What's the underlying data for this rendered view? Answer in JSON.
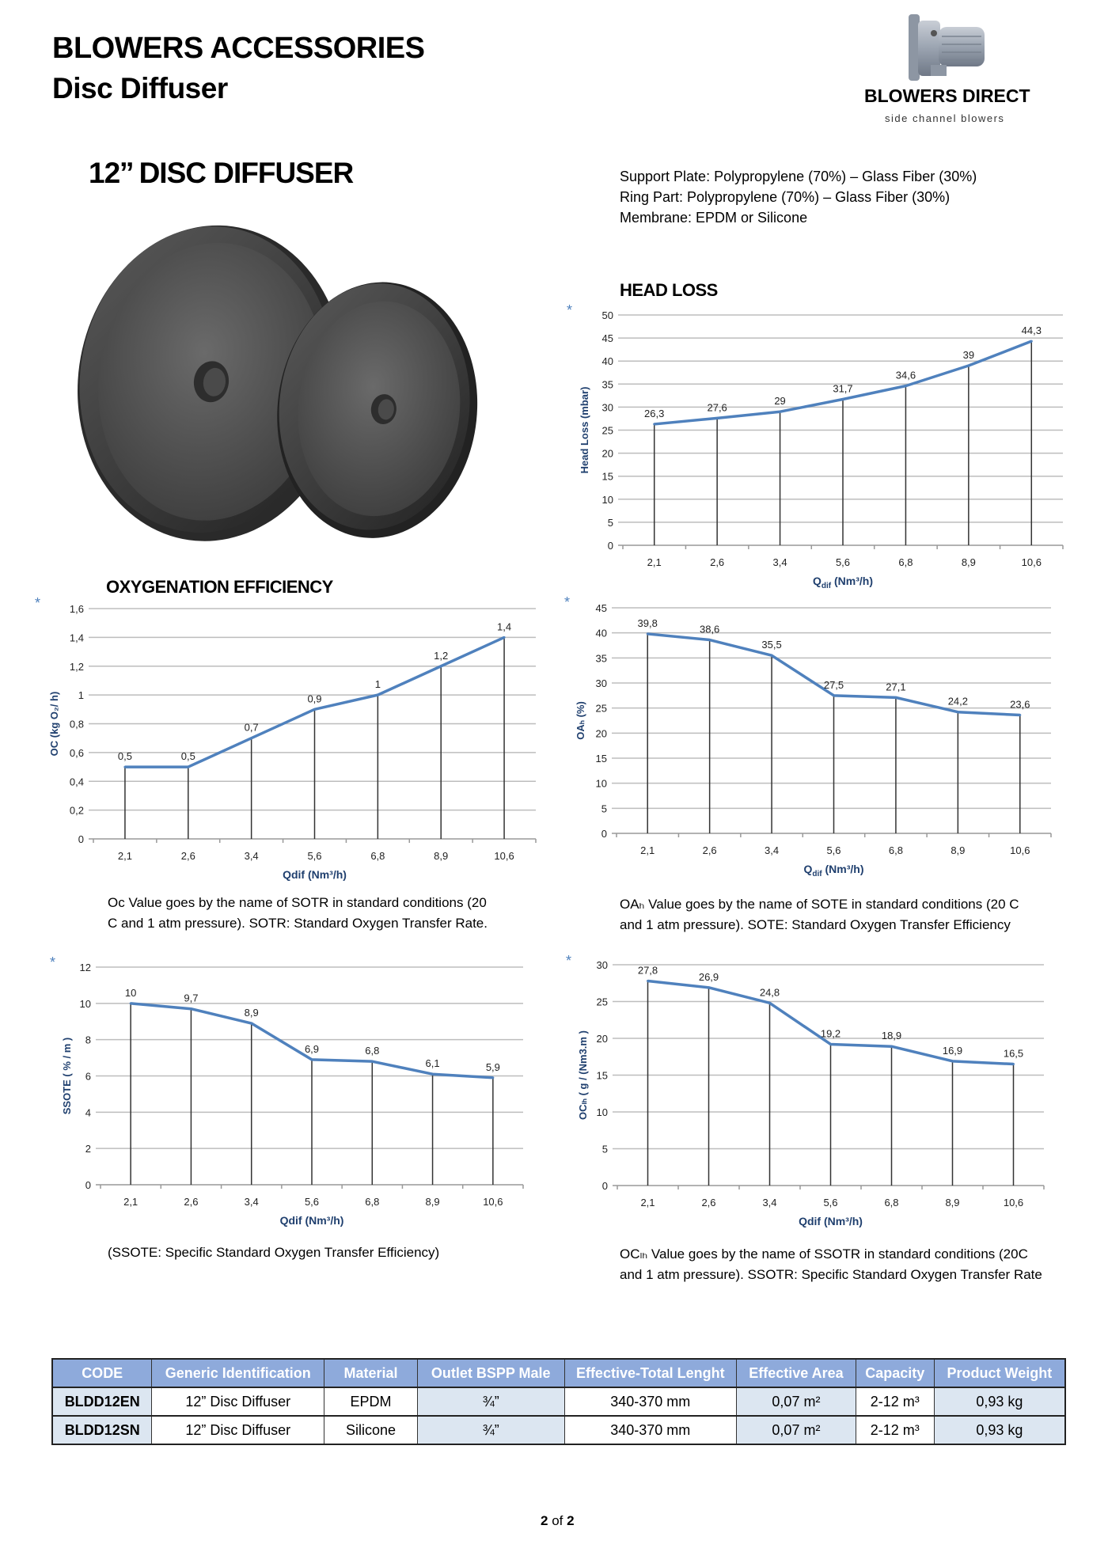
{
  "header": {
    "title": "BLOWERS ACCESSORIES",
    "subtitle": "Disc Diffuser"
  },
  "logo": {
    "brand": "BLOWERS DIRECT",
    "tagline": "side channel blowers"
  },
  "product": {
    "title": "12’’  DISC DIFFUSER",
    "specs": [
      "Support Plate: Polypropylene (70%) – Glass Fiber (30%)",
      "Ring Part: Polypropylene (70%) – Glass Fiber (30%)",
      "Membrane: EPDM or Silicone"
    ]
  },
  "sections": {
    "head_loss": "HEAD LOSS",
    "oxygenation": "OXYGENATION EFFICIENCY"
  },
  "captions": {
    "oc": [
      "Oc Value goes by the name of SOTR in standard conditions (20",
      "C and 1 atm pressure). SOTR: Standard Oxygen Transfer Rate."
    ],
    "oah": [
      "OAₕ Value goes by the name of SOTE in standard conditions (20 C",
      "and 1 atm pressure). SOTE: Standard Oxygen Transfer Efficiency"
    ],
    "ssote": [
      "(SSOTE: Specific Standard Oxygen Transfer Efficiency)"
    ],
    "oclh": [
      "OCₗₕ Value goes by the name of SSOTR in standard conditions (20C",
      "and 1 atm pressure). SSOTR: Specific Standard Oxygen Transfer Rate"
    ]
  },
  "marker": "*",
  "chart_data": [
    {
      "id": "head-loss",
      "type": "line",
      "categories": [
        "2,1",
        "2,6",
        "3,4",
        "5,6",
        "6,8",
        "8,9",
        "10,6"
      ],
      "values": [
        26.3,
        27.6,
        29,
        31.7,
        34.6,
        39,
        44.3
      ],
      "data_labels": [
        "26,3",
        "27,6",
        "29",
        "31,7",
        "34,6",
        "39",
        "44,3"
      ],
      "ylim": [
        0,
        50
      ],
      "y_ticks": [
        "0",
        "5",
        "10",
        "15",
        "20",
        "25",
        "30",
        "35",
        "40",
        "45",
        "50"
      ],
      "xlabel": [
        {
          "t": "Q"
        },
        {
          "t": "dif",
          "sub": true
        },
        {
          "t": " (Nm³/h)"
        }
      ],
      "ylabel": "Head Loss  (mbar)",
      "grid": true,
      "line_color": "#4f81bd"
    },
    {
      "id": "oc",
      "type": "line",
      "categories": [
        "2,1",
        "2,6",
        "3,4",
        "5,6",
        "6,8",
        "8,9",
        "10,6"
      ],
      "values": [
        0.5,
        0.5,
        0.7,
        0.9,
        1,
        1.2,
        1.4
      ],
      "data_labels": [
        "0,5",
        "0,5",
        "0,7",
        "0,9",
        "1",
        "1,2",
        "1,4"
      ],
      "ylim": [
        0,
        1.6
      ],
      "y_ticks": [
        "0",
        "0,2",
        "0,4",
        "0,6",
        "0,8",
        "1",
        "1,2",
        "1,4",
        "1,6"
      ],
      "xlabel": [
        {
          "t": "Qdif (Nm³/h)"
        }
      ],
      "ylabel": "OC (kg O₂/ h)",
      "grid": true,
      "line_color": "#4f81bd"
    },
    {
      "id": "oah",
      "type": "line",
      "categories": [
        "2,1",
        "2,6",
        "3,4",
        "5,6",
        "6,8",
        "8,9",
        "10,6"
      ],
      "values": [
        39.8,
        38.6,
        35.5,
        27.5,
        27.1,
        24.2,
        23.6
      ],
      "data_labels": [
        "39,8",
        "38,6",
        "35,5",
        "27,5",
        "27,1",
        "24,2",
        "23,6"
      ],
      "ylim": [
        0,
        45
      ],
      "y_ticks": [
        "0",
        "5",
        "10",
        "15",
        "20",
        "25",
        "30",
        "35",
        "40",
        "45"
      ],
      "xlabel": [
        {
          "t": "Q"
        },
        {
          "t": "dif",
          "sub": true
        },
        {
          "t": " (Nm³/h)"
        }
      ],
      "ylabel": "OAₕ  (%)",
      "grid": true,
      "line_color": "#4f81bd"
    },
    {
      "id": "ssote",
      "type": "line",
      "categories": [
        "2,1",
        "2,6",
        "3,4",
        "5,6",
        "6,8",
        "8,9",
        "10,6"
      ],
      "values": [
        10,
        9.7,
        8.9,
        6.9,
        6.8,
        6.1,
        5.9
      ],
      "data_labels": [
        "10",
        "9,7",
        "8,9",
        "6,9",
        "6,8",
        "6,1",
        "5,9"
      ],
      "ylim": [
        0,
        12
      ],
      "y_ticks": [
        "0",
        "2",
        "4",
        "6",
        "8",
        "10",
        "12"
      ],
      "xlabel": [
        {
          "t": "Qdif (Nm³/h)"
        }
      ],
      "ylabel": "SSOTE ( % / m )",
      "grid": true,
      "line_color": "#4f81bd"
    },
    {
      "id": "oclh",
      "type": "line",
      "categories": [
        "2,1",
        "2,6",
        "3,4",
        "5,6",
        "6,8",
        "8,9",
        "10,6"
      ],
      "values": [
        27.8,
        26.9,
        24.8,
        19.2,
        18.9,
        16.9,
        16.5
      ],
      "data_labels": [
        "27,8",
        "26,9",
        "24,8",
        "19,2",
        "18,9",
        "16,9",
        "16,5"
      ],
      "ylim": [
        0,
        30
      ],
      "y_ticks": [
        "0",
        "5",
        "10",
        "15",
        "20",
        "25",
        "30"
      ],
      "xlabel": [
        {
          "t": "Qdif (Nm³/h)"
        }
      ],
      "ylabel": "OCₗₕ ( g / (Nm3.m )",
      "grid": true,
      "line_color": "#4f81bd"
    }
  ],
  "table": {
    "header_color": "#8eaadb",
    "highlight_color": "#dce6f1",
    "columns": [
      "CODE",
      "Generic Identification",
      "Material",
      "Outlet BSPP Male",
      "Effective-Total Lenght",
      "Effective Area",
      "Capacity",
      "Product Weight"
    ],
    "rows": [
      [
        "BLDD12EN",
        "12” Disc Diffuser",
        "EPDM",
        "¾”",
        "340-370 mm",
        "0,07 m²",
        "2-12 m³",
        "0,93 kg"
      ],
      [
        "BLDD12SN",
        "12” Disc Diffuser",
        "Silicone",
        "¾”",
        "340-370 mm",
        "0,07 m²",
        "2-12 m³",
        "0,93 kg"
      ]
    ]
  },
  "footer": {
    "page": "2",
    "of": "of",
    "total": "2"
  }
}
